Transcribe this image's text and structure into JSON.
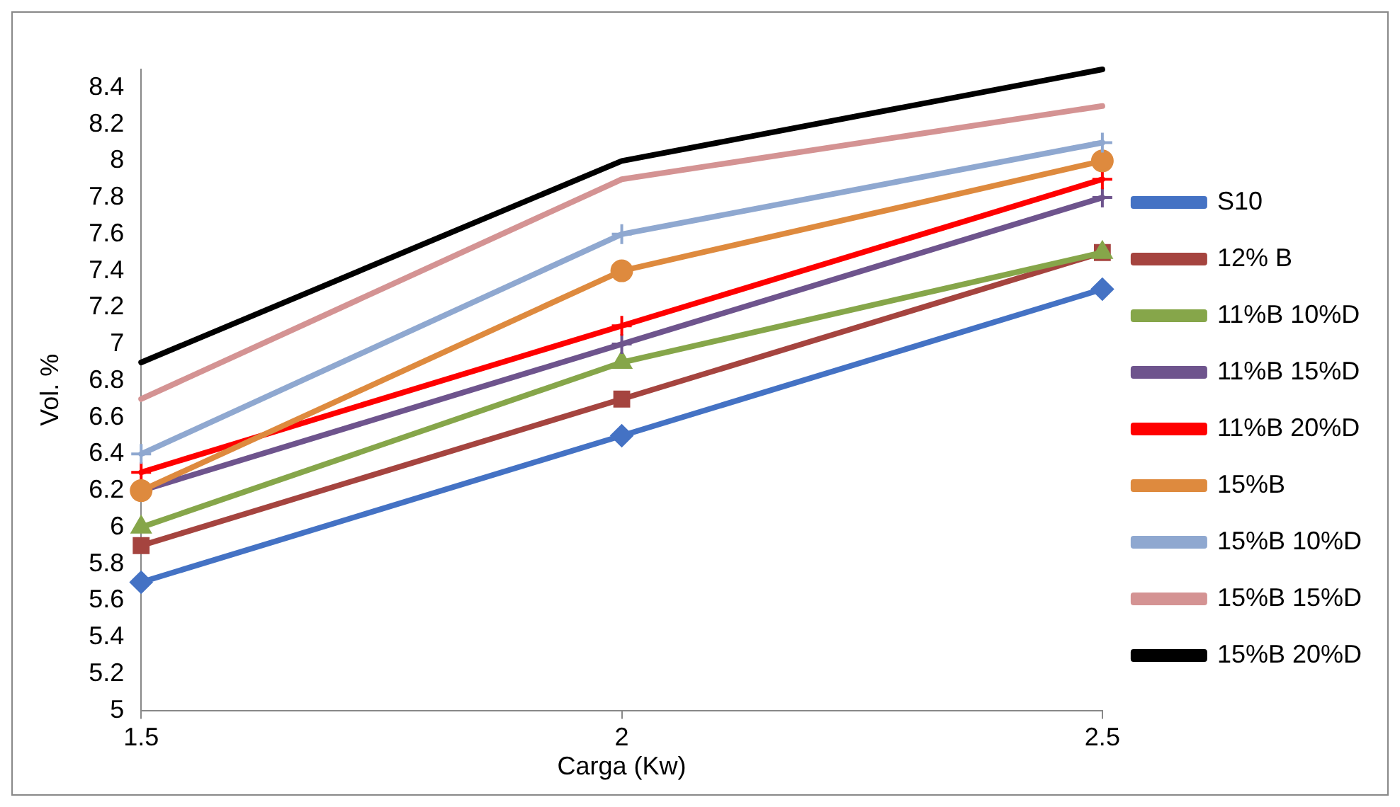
{
  "chart_data": {
    "type": "line",
    "xlabel": "Carga (Kw)",
    "ylabel": "Vol. %",
    "x": [
      1.5,
      2,
      2.5
    ],
    "xlim": [
      1.5,
      2.5
    ],
    "xticks": [
      1.5,
      2,
      2.5
    ],
    "ylim": [
      5,
      8.5
    ],
    "yticks": [
      5,
      5.2,
      5.4,
      5.6,
      5.8,
      6,
      6.2,
      6.4,
      6.6,
      6.8,
      7,
      7.2,
      7.4,
      7.6,
      7.8,
      8,
      8.2,
      8.4
    ],
    "grid": false,
    "legend": "right",
    "line_style": "solid",
    "series": [
      {
        "name": "S10",
        "color": "#4472c4",
        "marker": "diamond",
        "values": [
          5.7,
          6.5,
          7.3
        ]
      },
      {
        "name": "12% B",
        "color": "#a5443f",
        "marker": "square",
        "values": [
          5.9,
          6.7,
          7.5
        ]
      },
      {
        "name": "11%B 10%D",
        "color": "#86a64a",
        "marker": "triangle",
        "values": [
          6.0,
          6.9,
          7.5
        ]
      },
      {
        "name": "11%B 15%D",
        "color": "#6e548d",
        "marker": "cross",
        "values": [
          6.2,
          7.0,
          7.8
        ]
      },
      {
        "name": "11%B 20%D",
        "color": "#ff0000",
        "marker": "cross",
        "values": [
          6.3,
          7.1,
          7.9
        ]
      },
      {
        "name": "15%B",
        "color": "#de8a3e",
        "marker": "circle",
        "values": [
          6.2,
          7.4,
          8.0
        ]
      },
      {
        "name": "15%B 10%D",
        "color": "#8fa8d0",
        "marker": "cross",
        "values": [
          6.4,
          7.6,
          8.1
        ]
      },
      {
        "name": "15%B 15%D",
        "color": "#d49393",
        "marker": "none",
        "values": [
          6.7,
          7.9,
          8.3
        ]
      },
      {
        "name": "15%B 20%D",
        "color": "#000000",
        "marker": "none",
        "values": [
          6.9,
          8.0,
          8.5
        ]
      }
    ]
  }
}
